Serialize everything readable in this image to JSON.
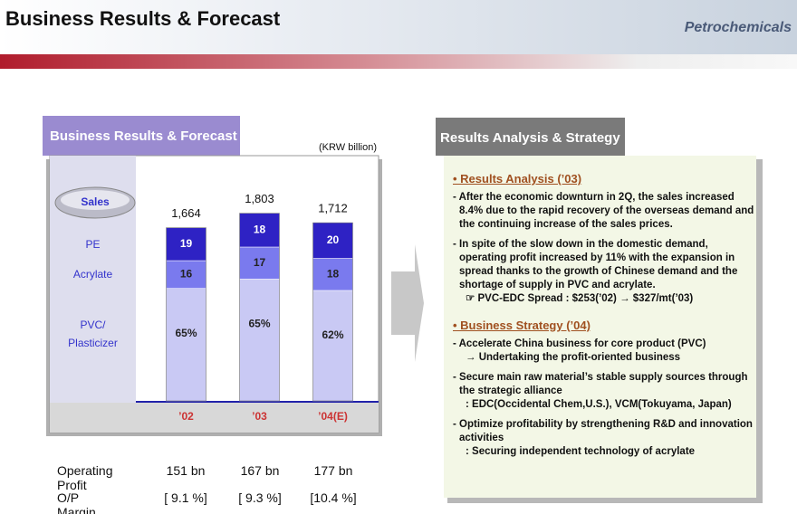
{
  "header": {
    "title": "Business Results & Forecast",
    "section": "Petrochemicals"
  },
  "chart_data": {
    "type": "bar",
    "stacked": true,
    "title": "Business Results & Forecast",
    "unit": "(KRW billion)",
    "row_label": "Sales",
    "categories": [
      "’02",
      "’03",
      "’04(E)"
    ],
    "series": [
      {
        "name": "PVC/ Plasticizer",
        "color": "#c9c9f4",
        "values": [
          65,
          65,
          62
        ],
        "value_labels": [
          "65%",
          "65%",
          "62%"
        ]
      },
      {
        "name": "Acrylate",
        "color": "#7a7aee",
        "values": [
          16,
          17,
          18
        ]
      },
      {
        "name": "PE",
        "color": "#2e22c4",
        "values": [
          19,
          18,
          20
        ]
      }
    ],
    "totals": {
      "values": [
        1664,
        1803,
        1712
      ],
      "value_labels": [
        "1,664",
        "1,803",
        "1,712"
      ]
    }
  },
  "table": {
    "rows": [
      [
        "Operating Profit",
        "151 bn",
        "167 bn",
        "177 bn"
      ],
      [
        "O/P Margin (%)",
        "[ 9.1 %]",
        "[ 9.3 %]",
        "[10.4 %]"
      ]
    ]
  },
  "panel": {
    "title": "Results Analysis & Strategy",
    "sections": [
      {
        "heading": "Results Analysis (’03)",
        "items": [
          {
            "text": "- After the economic downturn in 2Q, the sales increased 8.4% due to the rapid recovery of the overseas demand and the continuing increase of the sales prices."
          },
          {
            "text": "- In spite of the slow down in the domestic demand, operating profit increased by 11% with the expansion in spread thanks to the growth of Chinese demand and the shortage of supply in PVC and acrylate.",
            "sub": "☞ PVC-EDC Spread : $253(’02) → $327/mt(’03)"
          }
        ]
      },
      {
        "heading": "Business Strategy (’04)",
        "items": [
          {
            "text": "- Accelerate China business for core product (PVC)",
            "sub": "→ Undertaking the profit-oriented business"
          },
          {
            "text": "- Secure main raw material’s stable supply sources through the strategic alliance",
            "sub": ": EDC(Occidental Chem,U.S.), VCM(Tokuyama, Japan)"
          },
          {
            "text": "- Optimize profitability by strengthening R&D and innovation activities",
            "sub": ": Securing independent technology of acrylate"
          }
        ]
      }
    ]
  }
}
